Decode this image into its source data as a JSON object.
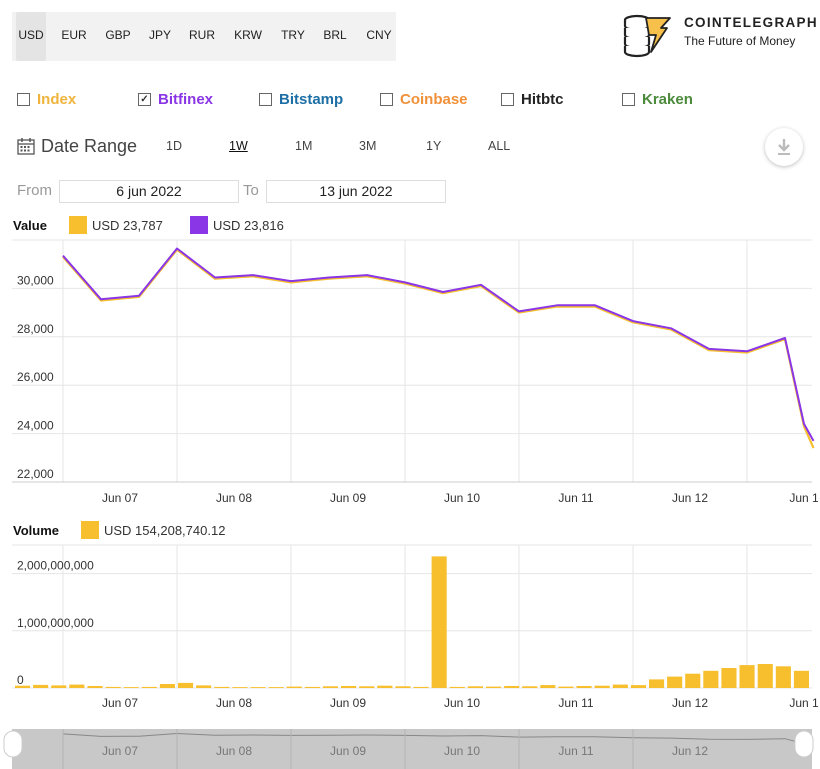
{
  "currencies": [
    {
      "label": "USD",
      "selected": true
    },
    {
      "label": "EUR",
      "selected": false
    },
    {
      "label": "GBP",
      "selected": false
    },
    {
      "label": "JPY",
      "selected": false
    },
    {
      "label": "RUR",
      "selected": false
    },
    {
      "label": "KRW",
      "selected": false
    },
    {
      "label": "TRY",
      "selected": false
    },
    {
      "label": "BRL",
      "selected": false
    },
    {
      "label": "CNY",
      "selected": false
    }
  ],
  "brand": {
    "title": "COINTELEGRAPH",
    "subtitle": "The Future of Money",
    "icon": "coin-stack-lightning-icon"
  },
  "exchanges": [
    {
      "label": "Index",
      "checked": false,
      "color": "#f0b43c"
    },
    {
      "label": "Bitfinex",
      "checked": true,
      "color": "#8a35e6"
    },
    {
      "label": "Bitstamp",
      "checked": false,
      "color": "#1d6fa5"
    },
    {
      "label": "Coinbase",
      "checked": false,
      "color": "#f0913a"
    },
    {
      "label": "Hitbtc",
      "checked": false,
      "color": "#222222"
    },
    {
      "label": "Kraken",
      "checked": false,
      "color": "#4c8a3c"
    }
  ],
  "date_range": {
    "label": "Date Range",
    "icon": "calendar-icon",
    "options": [
      "1D",
      "1W",
      "1M",
      "3M",
      "1Y",
      "ALL"
    ],
    "selected": "1W",
    "download_icon": "download-icon",
    "from_label": "From",
    "to_label": "To",
    "from_value": "6 jun 2022",
    "to_value": "13 jun 2022"
  },
  "value_legend": {
    "title": "Value",
    "items": [
      {
        "text": "USD 23,787",
        "color": "#f7bf2e"
      },
      {
        "text": "USD 23,816",
        "color": "#8a35e6"
      }
    ]
  },
  "volume_legend": {
    "title": "Volume",
    "items": [
      {
        "text": "USD 154,208,740.12",
        "color": "#f7bf2e"
      }
    ]
  },
  "chart_data": [
    {
      "type": "line",
      "x": [
        "2022-06-06 12:00",
        "2022-06-06 20:00",
        "2022-06-07 04:00",
        "2022-06-07 12:00",
        "2022-06-07 20:00",
        "2022-06-08 04:00",
        "2022-06-08 12:00",
        "2022-06-08 20:00",
        "2022-06-09 04:00",
        "2022-06-09 12:00",
        "2022-06-09 20:00",
        "2022-06-10 04:00",
        "2022-06-10 12:00",
        "2022-06-10 20:00",
        "2022-06-11 04:00",
        "2022-06-11 12:00",
        "2022-06-11 20:00",
        "2022-06-12 04:00",
        "2022-06-12 12:00",
        "2022-06-12 20:00",
        "2022-06-13 00:00",
        "2022-06-13 02:00"
      ],
      "series": [
        {
          "color": "#f7bf2e",
          "values": [
            31300,
            29500,
            29650,
            31600,
            30400,
            30500,
            30250,
            30400,
            30500,
            30200,
            29800,
            30100,
            29000,
            29250,
            29250,
            28600,
            28300,
            27450,
            27350,
            27900,
            24300,
            23400
          ]
        },
        {
          "color": "#8a35e6",
          "values": [
            31350,
            29550,
            29700,
            31650,
            30450,
            30550,
            30300,
            30450,
            30550,
            30250,
            29850,
            30150,
            29050,
            29300,
            29300,
            28650,
            28350,
            27500,
            27400,
            27950,
            24400,
            23700
          ]
        }
      ],
      "x_ticks": [
        "Jun 07",
        "Jun 08",
        "Jun 09",
        "Jun 10",
        "Jun 11",
        "Jun 12",
        "Jun 1"
      ],
      "y_ticks": [
        "22,000",
        "24,000",
        "26,000",
        "28,000",
        "30,000"
      ],
      "ylim": [
        22000,
        32000
      ],
      "grid": true
    },
    {
      "type": "bar",
      "series": [
        {
          "color": "#f7bf2e",
          "values": [
            40000000,
            55000000,
            45000000,
            60000000,
            35000000,
            20000000,
            15000000,
            20000000,
            70000000,
            90000000,
            45000000,
            20000000,
            15000000,
            15000000,
            15000000,
            25000000,
            20000000,
            30000000,
            35000000,
            30000000,
            40000000,
            30000000,
            20000000,
            2300000000,
            20000000,
            30000000,
            25000000,
            35000000,
            30000000,
            50000000,
            25000000,
            35000000,
            40000000,
            60000000,
            50000000,
            150000000,
            200000000,
            250000000,
            300000000,
            350000000,
            400000000,
            420000000,
            380000000,
            300000000
          ]
        }
      ],
      "x_ticks": [
        "Jun 07",
        "Jun 08",
        "Jun 09",
        "Jun 10",
        "Jun 11",
        "Jun 12",
        "Jun 1"
      ],
      "y_ticks": [
        "0",
        "1,000,000,000",
        "2,000,000,000"
      ],
      "ylim": [
        0,
        2500000000
      ],
      "grid": true
    }
  ],
  "navigator": {
    "ticks": [
      "Jun 07",
      "Jun 08",
      "Jun 09",
      "Jun 10",
      "Jun 11",
      "Jun 12"
    ]
  }
}
